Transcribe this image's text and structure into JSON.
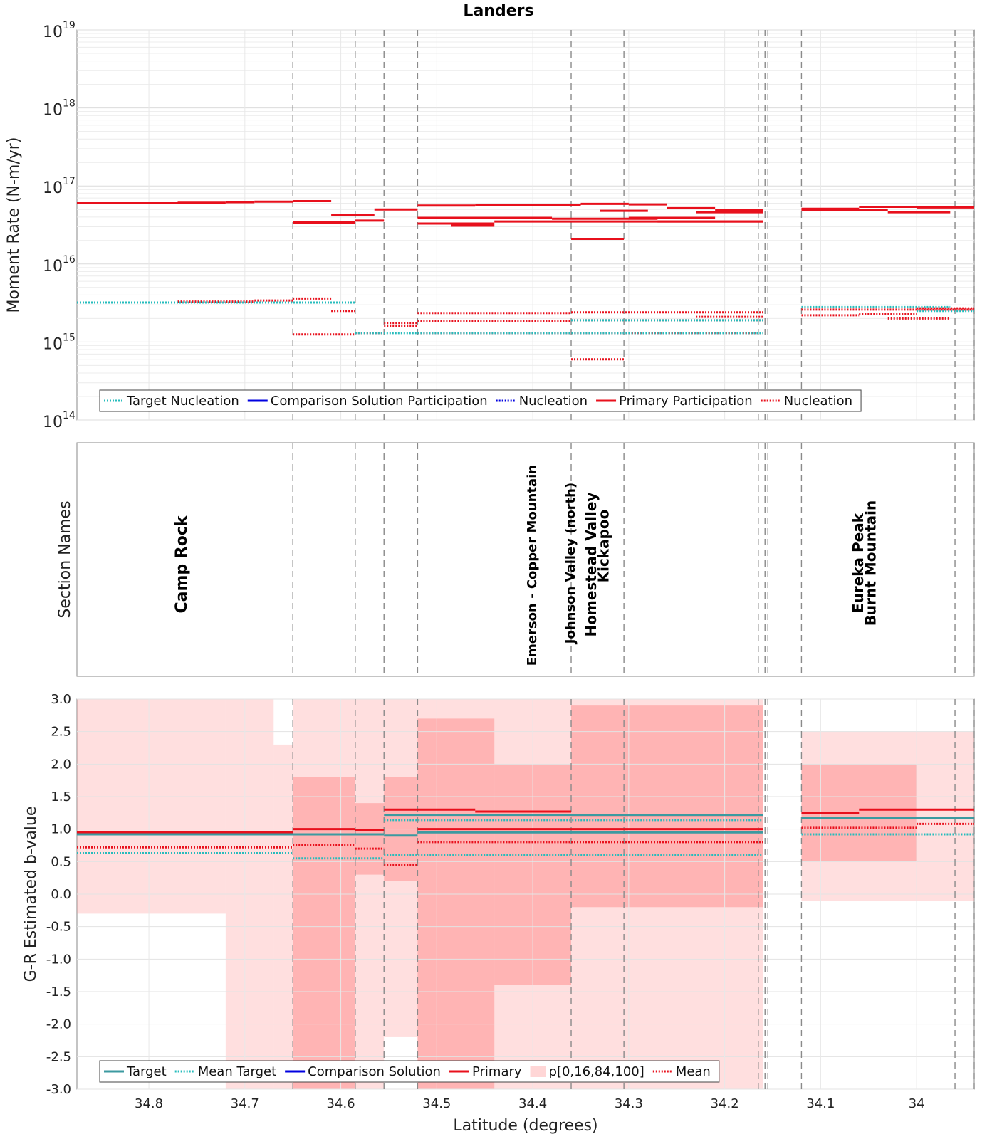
{
  "figure_title": "Landers",
  "chart_data": [
    {
      "type": "line",
      "panel": "moment-rate",
      "title": "Landers",
      "xlabel": "",
      "ylabel": "Moment Rate (N-m/yr)",
      "yscale": "log",
      "ylim": [
        100000000000000.0,
        1e+19
      ],
      "xlim": [
        34.875,
        33.94
      ],
      "x_inverted": true,
      "ytick_bases": [
        "10",
        "10",
        "10",
        "10",
        "10",
        "10"
      ],
      "ytick_exponents": [
        "14",
        "15",
        "16",
        "17",
        "18",
        "19"
      ],
      "legend": {
        "placement": "lower-left",
        "entries": [
          {
            "label": "Target Nucleation",
            "color": "#26bcbc",
            "style": "dotted"
          },
          {
            "label": "Comparison Solution Participation",
            "color": "#0000e0",
            "style": "solid"
          },
          {
            "label": "Nucleation",
            "color": "#0000e0",
            "style": "dotted"
          },
          {
            "label": "Primary Participation",
            "color": "#e8101c",
            "style": "solid"
          },
          {
            "label": "Nucleation",
            "color": "#e8101c",
            "style": "dotted"
          }
        ]
      },
      "series": [
        {
          "name": "Primary Participation",
          "color": "#e8101c",
          "style": "solid",
          "segments": [
            [
              34.875,
              34.77,
              6e+16
            ],
            [
              34.77,
              34.72,
              6.1e+16
            ],
            [
              34.72,
              34.69,
              6.2e+16
            ],
            [
              34.69,
              34.65,
              6.3e+16
            ],
            [
              34.65,
              34.61,
              6.4e+16
            ],
            [
              34.65,
              34.585,
              3.4e+16
            ],
            [
              34.585,
              34.555,
              3.6e+16
            ],
            [
              34.61,
              34.565,
              4.2e+16
            ],
            [
              34.565,
              34.52,
              5e+16
            ],
            [
              34.52,
              34.46,
              5.6e+16
            ],
            [
              34.46,
              34.35,
              5.7e+16
            ],
            [
              34.35,
              34.3,
              5.9e+16
            ],
            [
              34.3,
              34.26,
              5.8e+16
            ],
            [
              34.26,
              34.21,
              5.2e+16
            ],
            [
              34.21,
              34.16,
              4.9e+16
            ],
            [
              34.52,
              34.38,
              3.9e+16
            ],
            [
              34.38,
              34.27,
              3.8e+16
            ],
            [
              34.27,
              34.16,
              3.5e+16
            ],
            [
              34.52,
              34.44,
              3.3e+16
            ],
            [
              34.44,
              34.36,
              3.5e+16
            ],
            [
              34.36,
              34.16,
              3.5e+16
            ],
            [
              34.485,
              34.44,
              3.1e+16
            ],
            [
              34.33,
              34.28,
              4.8e+16
            ],
            [
              34.3,
              34.21,
              3.9e+16
            ],
            [
              34.23,
              34.16,
              4.6e+16
            ],
            [
              34.36,
              34.325,
              2.1e+16
            ],
            [
              34.325,
              34.305,
              2.1e+16
            ],
            [
              34.12,
              34.06,
              5.1e+16
            ],
            [
              34.06,
              34.0,
              5.4e+16
            ],
            [
              34.0,
              33.94,
              5.3e+16
            ],
            [
              34.12,
              34.03,
              4.9e+16
            ],
            [
              34.03,
              33.965,
              4.6e+16
            ]
          ]
        },
        {
          "name": "Primary Nucleation",
          "color": "#e8101c",
          "style": "dotted",
          "segments": [
            [
              34.875,
              34.77,
              3200000000000000.0
            ],
            [
              34.77,
              34.69,
              3300000000000000.0
            ],
            [
              34.69,
              34.65,
              3400000000000000.0
            ],
            [
              34.65,
              34.61,
              3600000000000000.0
            ],
            [
              34.61,
              34.585,
              2500000000000000.0
            ],
            [
              34.65,
              34.585,
              1250000000000000.0
            ],
            [
              34.585,
              34.555,
              1300000000000000.0
            ],
            [
              34.555,
              34.52,
              1600000000000000.0
            ],
            [
              34.555,
              34.52,
              1750000000000000.0
            ],
            [
              34.52,
              34.36,
              2350000000000000.0
            ],
            [
              34.36,
              34.16,
              2400000000000000.0
            ],
            [
              34.52,
              34.36,
              1850000000000000.0
            ],
            [
              34.36,
              34.16,
              1900000000000000.0
            ],
            [
              34.52,
              34.3,
              1300000000000000.0
            ],
            [
              34.3,
              34.16,
              1300000000000000.0
            ],
            [
              34.23,
              34.16,
              2100000000000000.0
            ],
            [
              34.36,
              34.305,
              600000000000000.0
            ],
            [
              34.12,
              34.06,
              2200000000000000.0
            ],
            [
              34.06,
              34.0,
              2300000000000000.0
            ],
            [
              34.0,
              33.94,
              2700000000000000.0
            ],
            [
              34.03,
              33.965,
              2000000000000000.0
            ],
            [
              34.12,
              33.94,
              2600000000000000.0
            ]
          ]
        },
        {
          "name": "Target Nucleation",
          "color": "#26bcbc",
          "style": "dotted",
          "segments": [
            [
              34.875,
              34.585,
              3200000000000000.0
            ],
            [
              34.585,
              34.52,
              1300000000000000.0
            ],
            [
              34.52,
              34.16,
              1300000000000000.0
            ],
            [
              34.36,
              34.16,
              1900000000000000.0
            ],
            [
              34.12,
              33.965,
              2800000000000000.0
            ],
            [
              34.0,
              33.94,
              2500000000000000.0
            ]
          ]
        }
      ]
    },
    {
      "type": "table",
      "panel": "section-names",
      "ylabel": "Section Names",
      "sections": [
        {
          "name": "Camp Rock",
          "lat": 34.765
        },
        {
          "name": "Emerson - Copper Mountain",
          "lat": 34.4
        },
        {
          "name": "Johnson Valley (north)",
          "lat": 34.36
        },
        {
          "name": "Homestead Valley",
          "lat": 34.338
        },
        {
          "name": "Kickapoo",
          "lat": 34.325
        },
        {
          "name": "Eureka Peak",
          "lat": 34.06
        },
        {
          "name": "Burnt Mountain",
          "lat": 34.047
        }
      ]
    },
    {
      "type": "area",
      "panel": "b-value",
      "xlabel": "Latitude (degrees)",
      "ylabel": "G-R Estimated b-value",
      "ylim": [
        -3.0,
        3.0
      ],
      "xlim": [
        34.875,
        33.94
      ],
      "x_inverted": true,
      "yticks": [
        "3.0",
        "2.5",
        "2.0",
        "1.5",
        "1.0",
        "0.5",
        "0.0",
        "-0.5",
        "-1.0",
        "-1.5",
        "-2.0",
        "-2.5",
        "-3.0"
      ],
      "xticks": [
        "34.8",
        "34.7",
        "34.6",
        "34.5",
        "34.4",
        "34.3",
        "34.2",
        "34.1",
        "34"
      ],
      "legend": {
        "placement": "lower-left",
        "entries": [
          {
            "label": "Target",
            "color": "#3c9aa0",
            "style": "solid"
          },
          {
            "label": "Mean Target",
            "color": "#26bcbc",
            "style": "dotted"
          },
          {
            "label": "Comparison Solution",
            "color": "#0000e0",
            "style": "solid"
          },
          {
            "label": "Primary",
            "color": "#e8101c",
            "style": "solid"
          },
          {
            "label": "p[0,16,84,100]",
            "color": "#ffd6d6",
            "style": "patch"
          },
          {
            "label": "Mean",
            "color": "#e8101c",
            "style": "dotted"
          }
        ]
      },
      "bands_p0_p100": [
        [
          34.875,
          34.72,
          -0.3,
          3.0
        ],
        [
          34.72,
          34.67,
          -3.0,
          3.0
        ],
        [
          34.67,
          34.65,
          -3.0,
          2.3
        ],
        [
          34.65,
          34.555,
          -3.0,
          3.0
        ],
        [
          34.555,
          34.52,
          -2.2,
          3.0
        ],
        [
          34.52,
          34.16,
          -3.0,
          3.0
        ],
        [
          34.12,
          33.94,
          -0.1,
          2.5
        ]
      ],
      "bands_p16_p84": [
        [
          34.65,
          34.585,
          -3.0,
          1.8
        ],
        [
          34.585,
          34.555,
          0.3,
          1.4
        ],
        [
          34.52,
          34.44,
          -3.0,
          2.7
        ],
        [
          34.44,
          34.36,
          -1.4,
          2.0
        ],
        [
          34.36,
          34.16,
          -0.2,
          2.9
        ],
        [
          34.555,
          34.52,
          0.2,
          1.8
        ],
        [
          34.12,
          34.0,
          0.5,
          2.0
        ]
      ],
      "series": [
        {
          "name": "Primary",
          "color": "#e8101c",
          "style": "solid",
          "segments": [
            [
              34.875,
              34.65,
              0.95
            ],
            [
              34.65,
              34.585,
              1.0
            ],
            [
              34.585,
              34.555,
              0.98
            ],
            [
              34.555,
              34.46,
              1.3
            ],
            [
              34.46,
              34.36,
              1.27
            ],
            [
              34.36,
              34.16,
              1.22
            ],
            [
              34.52,
              34.36,
              1.0
            ],
            [
              34.36,
              34.16,
              1.0
            ],
            [
              34.12,
              34.06,
              1.25
            ],
            [
              34.06,
              33.94,
              1.3
            ]
          ]
        },
        {
          "name": "Mean",
          "color": "#e8101c",
          "style": "dotted",
          "segments": [
            [
              34.875,
              34.65,
              0.72
            ],
            [
              34.65,
              34.585,
              0.75
            ],
            [
              34.585,
              34.555,
              0.7
            ],
            [
              34.555,
              34.52,
              0.45
            ],
            [
              34.52,
              34.36,
              0.8
            ],
            [
              34.36,
              34.16,
              0.8
            ],
            [
              34.12,
              34.0,
              1.02
            ],
            [
              34.0,
              33.94,
              1.08
            ]
          ]
        },
        {
          "name": "Target",
          "color": "#3c9aa0",
          "style": "solid",
          "segments": [
            [
              34.875,
              34.555,
              0.92
            ],
            [
              34.555,
              34.52,
              0.9
            ],
            [
              34.52,
              34.16,
              0.95
            ],
            [
              34.555,
              34.16,
              1.22
            ],
            [
              34.12,
              33.94,
              1.17
            ]
          ]
        },
        {
          "name": "Mean Target",
          "color": "#26bcbc",
          "style": "dotted",
          "segments": [
            [
              34.875,
              34.65,
              0.63
            ],
            [
              34.65,
              34.555,
              0.55
            ],
            [
              34.555,
              34.16,
              0.6
            ],
            [
              34.555,
              34.16,
              1.14
            ],
            [
              34.12,
              33.94,
              0.92
            ]
          ]
        }
      ]
    }
  ],
  "section_boundaries": [
    34.65,
    34.585,
    34.555,
    34.52,
    34.36,
    34.305,
    34.165,
    34.158,
    34.155,
    34.12,
    33.96,
    33.94
  ]
}
